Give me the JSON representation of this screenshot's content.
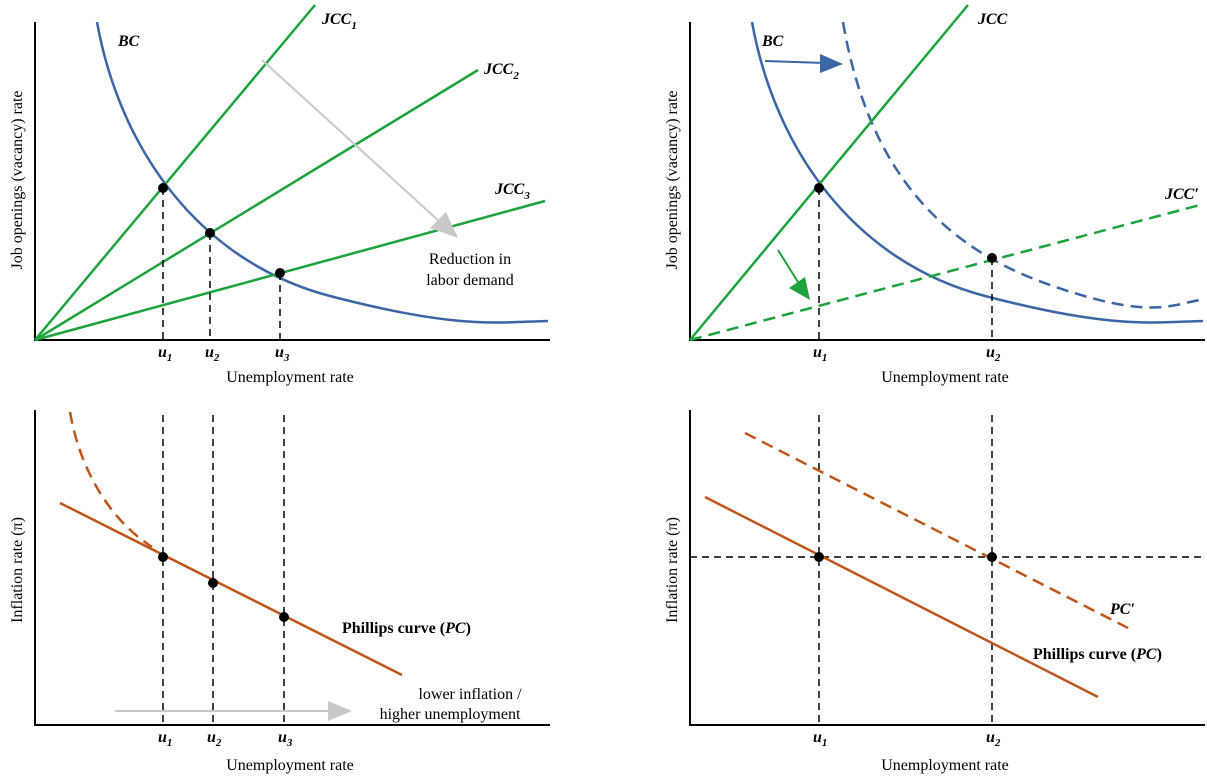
{
  "panels": [
    {
      "y_label": "Job openings (vacancy) rate",
      "x_label": "Unemployment rate",
      "curves": {
        "bc": "BC",
        "jcc1": {
          "main": "JCC",
          "sub": "1"
        },
        "jcc2": {
          "main": "JCC",
          "sub": "2"
        },
        "jcc3": {
          "main": "JCC",
          "sub": "3"
        }
      },
      "annotation": [
        "Reduction in",
        "labor demand"
      ],
      "ticks": [
        {
          "main": "u",
          "sub": "1"
        },
        {
          "main": "u",
          "sub": "2"
        },
        {
          "main": "u",
          "sub": "3"
        }
      ]
    },
    {
      "y_label": "Job openings (vacancy) rate",
      "x_label": "Unemployment rate",
      "curves": {
        "bc": "BC",
        "jcc": "JCC",
        "jcc_prime": "JCC′"
      },
      "ticks": [
        {
          "main": "u",
          "sub": "1"
        },
        {
          "main": "u",
          "sub": "2"
        }
      ]
    },
    {
      "y_label": "Inflation rate (π)",
      "x_label": "Unemployment rate",
      "curves": {
        "pc": [
          "Phillips curve (",
          "PC",
          ")"
        ]
      },
      "annotation": [
        "lower inflation /",
        "higher unemployment"
      ],
      "ticks": [
        {
          "main": "u",
          "sub": "1"
        },
        {
          "main": "u",
          "sub": "2"
        },
        {
          "main": "u",
          "sub": "3"
        }
      ]
    },
    {
      "y_label": "Inflation rate (π)",
      "x_label": "Unemployment rate",
      "curves": {
        "pc": [
          "Phillips curve (",
          "PC",
          ")"
        ],
        "pc_prime": "PC′"
      },
      "ticks": [
        {
          "main": "u",
          "sub": "1"
        },
        {
          "main": "u",
          "sub": "2"
        }
      ]
    }
  ]
}
